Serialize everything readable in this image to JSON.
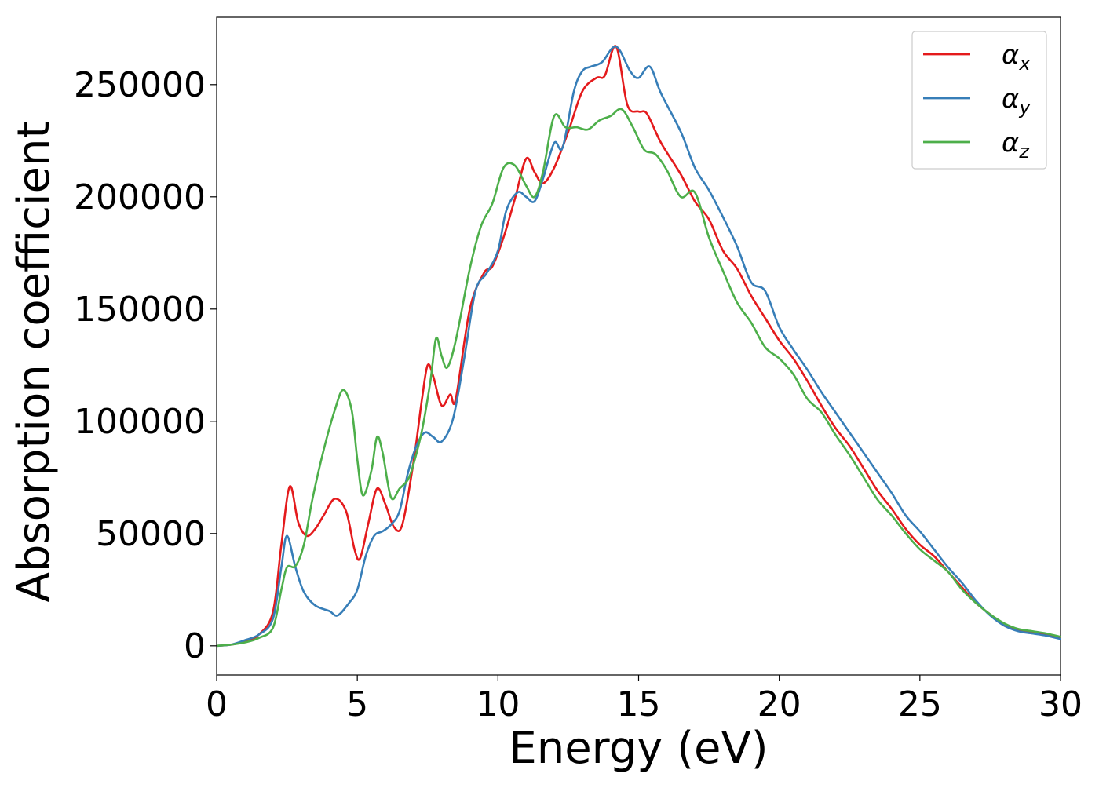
{
  "chart_data": {
    "type": "line",
    "title": "",
    "xlabel": "Energy (eV)",
    "ylabel": "Absorption coefficient",
    "xlim": [
      0,
      30
    ],
    "ylim": [
      -13000,
      280000
    ],
    "grid": false,
    "legend_position": "top-right",
    "x_ticks": [
      0,
      5,
      10,
      15,
      20,
      25,
      30
    ],
    "x_tick_labels": [
      "0",
      "5",
      "10",
      "15",
      "20",
      "25",
      "30"
    ],
    "y_ticks": [
      0,
      50000,
      100000,
      150000,
      200000,
      250000
    ],
    "y_tick_labels": [
      "0",
      "50000",
      "100000",
      "150000",
      "200000",
      "250000"
    ],
    "series": [
      {
        "name": "α",
        "subscript": "x",
        "color": "#e41a1c",
        "points": [
          [
            0,
            0
          ],
          [
            0.5,
            500
          ],
          [
            1,
            2000
          ],
          [
            1.5,
            5000
          ],
          [
            2,
            15000
          ],
          [
            2.3,
            45000
          ],
          [
            2.6,
            71000
          ],
          [
            2.9,
            55000
          ],
          [
            3.2,
            49000
          ],
          [
            3.5,
            52000
          ],
          [
            3.8,
            58000
          ],
          [
            4.2,
            65500
          ],
          [
            4.6,
            60000
          ],
          [
            4.9,
            43000
          ],
          [
            5.1,
            39000
          ],
          [
            5.4,
            55000
          ],
          [
            5.7,
            70000
          ],
          [
            6,
            63000
          ],
          [
            6.3,
            53000
          ],
          [
            6.6,
            54000
          ],
          [
            7,
            82000
          ],
          [
            7.3,
            110000
          ],
          [
            7.5,
            125000
          ],
          [
            7.7,
            120000
          ],
          [
            8,
            107000
          ],
          [
            8.3,
            112000
          ],
          [
            8.5,
            110000
          ],
          [
            9,
            150000
          ],
          [
            9.5,
            166000
          ],
          [
            9.8,
            169000
          ],
          [
            10.2,
            182000
          ],
          [
            10.6,
            199000
          ],
          [
            11,
            217000
          ],
          [
            11.3,
            211000
          ],
          [
            11.6,
            206000
          ],
          [
            12,
            213000
          ],
          [
            12.5,
            229000
          ],
          [
            13,
            247000
          ],
          [
            13.5,
            253000
          ],
          [
            13.8,
            254000
          ],
          [
            14.2,
            267000
          ],
          [
            14.6,
            241000
          ],
          [
            15,
            238000
          ],
          [
            15.3,
            237000
          ],
          [
            15.8,
            224000
          ],
          [
            16.5,
            210000
          ],
          [
            17,
            198000
          ],
          [
            17.5,
            190000
          ],
          [
            18,
            176000
          ],
          [
            18.5,
            168000
          ],
          [
            19,
            156000
          ],
          [
            19.5,
            146000
          ],
          [
            20,
            136000
          ],
          [
            20.5,
            128000
          ],
          [
            21,
            118000
          ],
          [
            21.5,
            107000
          ],
          [
            22,
            97000
          ],
          [
            22.5,
            89000
          ],
          [
            23,
            79000
          ],
          [
            23.5,
            69000
          ],
          [
            24,
            61000
          ],
          [
            24.5,
            52000
          ],
          [
            25,
            45000
          ],
          [
            25.5,
            40000
          ],
          [
            26,
            33000
          ],
          [
            26.5,
            26000
          ],
          [
            27,
            19000
          ],
          [
            27.5,
            14000
          ],
          [
            28,
            9000
          ],
          [
            28.5,
            7000
          ],
          [
            29,
            6000
          ],
          [
            29.5,
            5000
          ],
          [
            30,
            3500
          ]
        ]
      },
      {
        "name": "α",
        "subscript": "y",
        "color": "#377eb8",
        "points": [
          [
            0,
            0
          ],
          [
            0.5,
            500
          ],
          [
            1,
            2500
          ],
          [
            1.5,
            5000
          ],
          [
            2,
            12000
          ],
          [
            2.3,
            35000
          ],
          [
            2.5,
            49000
          ],
          [
            2.8,
            35000
          ],
          [
            3.1,
            24000
          ],
          [
            3.5,
            18000
          ],
          [
            4,
            15500
          ],
          [
            4.3,
            13500
          ],
          [
            4.7,
            19000
          ],
          [
            5,
            25000
          ],
          [
            5.3,
            40000
          ],
          [
            5.6,
            49000
          ],
          [
            5.9,
            51000
          ],
          [
            6.2,
            54000
          ],
          [
            6.5,
            60000
          ],
          [
            6.8,
            77000
          ],
          [
            7.1,
            89000
          ],
          [
            7.4,
            95000
          ],
          [
            7.7,
            93000
          ],
          [
            8,
            91000
          ],
          [
            8.4,
            101000
          ],
          [
            8.8,
            128000
          ],
          [
            9.2,
            158000
          ],
          [
            9.6,
            166000
          ],
          [
            10,
            176000
          ],
          [
            10.3,
            194000
          ],
          [
            10.7,
            202000
          ],
          [
            11,
            200000
          ],
          [
            11.3,
            198000
          ],
          [
            11.6,
            208000
          ],
          [
            12,
            224000
          ],
          [
            12.3,
            222000
          ],
          [
            12.7,
            247000
          ],
          [
            13,
            256000
          ],
          [
            13.3,
            258000
          ],
          [
            13.7,
            260000
          ],
          [
            14.2,
            267000
          ],
          [
            14.7,
            256000
          ],
          [
            15,
            253000
          ],
          [
            15.4,
            258000
          ],
          [
            15.8,
            246000
          ],
          [
            16.5,
            229000
          ],
          [
            17,
            213000
          ],
          [
            17.5,
            203000
          ],
          [
            18,
            191000
          ],
          [
            18.5,
            178000
          ],
          [
            19,
            162000
          ],
          [
            19.5,
            158000
          ],
          [
            20,
            142000
          ],
          [
            20.5,
            132000
          ],
          [
            21,
            123000
          ],
          [
            21.5,
            113000
          ],
          [
            22,
            104000
          ],
          [
            22.5,
            95000
          ],
          [
            23,
            86000
          ],
          [
            23.5,
            77000
          ],
          [
            24,
            68000
          ],
          [
            24.5,
            58000
          ],
          [
            25,
            51000
          ],
          [
            25.5,
            43000
          ],
          [
            26,
            35000
          ],
          [
            26.5,
            28000
          ],
          [
            27,
            20000
          ],
          [
            27.5,
            13500
          ],
          [
            28,
            9000
          ],
          [
            28.5,
            6500
          ],
          [
            29,
            5500
          ],
          [
            29.5,
            4500
          ],
          [
            30,
            3000
          ]
        ]
      },
      {
        "name": "α",
        "subscript": "z",
        "color": "#4daf4a",
        "points": [
          [
            0,
            0
          ],
          [
            0.5,
            500
          ],
          [
            1,
            1500
          ],
          [
            1.5,
            3500
          ],
          [
            2,
            8000
          ],
          [
            2.3,
            25000
          ],
          [
            2.5,
            35000
          ],
          [
            2.8,
            35500
          ],
          [
            3.1,
            45000
          ],
          [
            3.4,
            65000
          ],
          [
            3.8,
            87000
          ],
          [
            4.2,
            105000
          ],
          [
            4.5,
            114000
          ],
          [
            4.8,
            105000
          ],
          [
            5,
            83000
          ],
          [
            5.2,
            67000
          ],
          [
            5.5,
            78000
          ],
          [
            5.7,
            93000
          ],
          [
            5.9,
            86000
          ],
          [
            6.2,
            66000
          ],
          [
            6.5,
            70000
          ],
          [
            6.8,
            74000
          ],
          [
            7,
            81000
          ],
          [
            7.3,
            96000
          ],
          [
            7.6,
            118000
          ],
          [
            7.8,
            137000
          ],
          [
            8,
            129000
          ],
          [
            8.2,
            124000
          ],
          [
            8.5,
            136000
          ],
          [
            9,
            168000
          ],
          [
            9.4,
            187000
          ],
          [
            9.8,
            197000
          ],
          [
            10.2,
            213000
          ],
          [
            10.6,
            214000
          ],
          [
            11,
            205000
          ],
          [
            11.3,
            200000
          ],
          [
            11.6,
            211000
          ],
          [
            12,
            236000
          ],
          [
            12.4,
            231000
          ],
          [
            12.8,
            231000
          ],
          [
            13.2,
            230000
          ],
          [
            13.6,
            234000
          ],
          [
            14,
            236000
          ],
          [
            14.4,
            239000
          ],
          [
            14.8,
            231000
          ],
          [
            15.2,
            221000
          ],
          [
            15.6,
            219000
          ],
          [
            16,
            212000
          ],
          [
            16.5,
            200000
          ],
          [
            17,
            202000
          ],
          [
            17.5,
            182000
          ],
          [
            18,
            167000
          ],
          [
            18.5,
            153000
          ],
          [
            19,
            144000
          ],
          [
            19.5,
            133000
          ],
          [
            20,
            128000
          ],
          [
            20.5,
            121000
          ],
          [
            21,
            110000
          ],
          [
            21.5,
            104000
          ],
          [
            22,
            94000
          ],
          [
            22.5,
            85000
          ],
          [
            23,
            75000
          ],
          [
            23.5,
            65000
          ],
          [
            24,
            58000
          ],
          [
            24.5,
            50000
          ],
          [
            25,
            43000
          ],
          [
            25.5,
            38000
          ],
          [
            26,
            33000
          ],
          [
            26.5,
            25000
          ],
          [
            27,
            19000
          ],
          [
            27.5,
            14000
          ],
          [
            28,
            10000
          ],
          [
            28.5,
            7500
          ],
          [
            29,
            6500
          ],
          [
            29.5,
            5500
          ],
          [
            30,
            4000
          ]
        ]
      }
    ]
  }
}
